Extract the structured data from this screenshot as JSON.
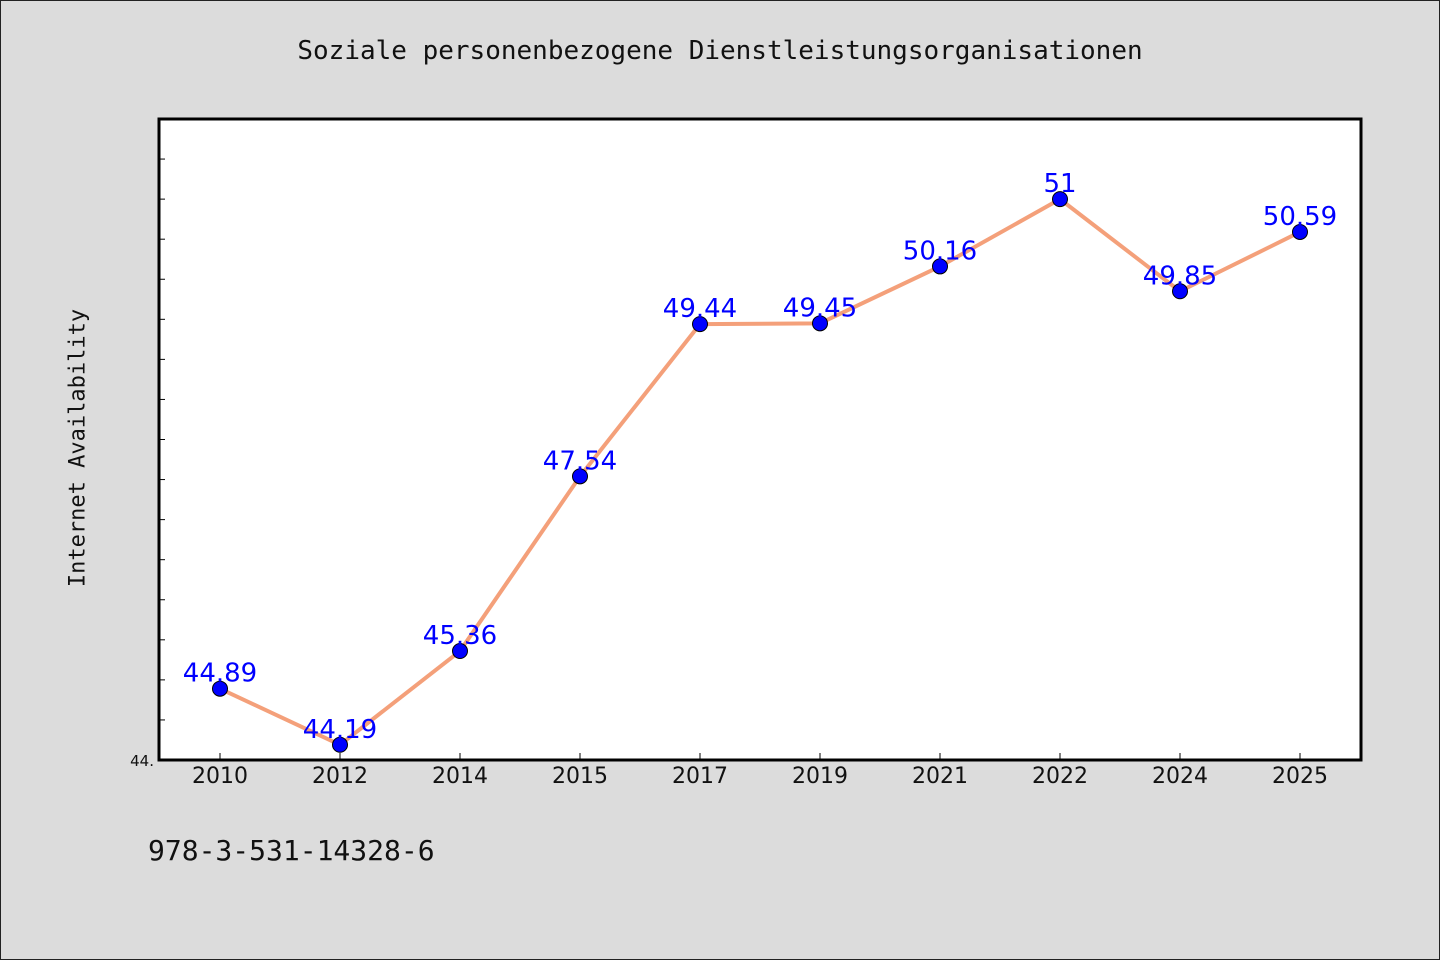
{
  "chart_data": {
    "type": "line",
    "title": "Soziale personenbezogene Dienstleistungsorganisationen",
    "xlabel": "",
    "ylabel": "Internet Availability",
    "categories": [
      "2010",
      "2012",
      "2014",
      "2015",
      "2017",
      "2019",
      "2021",
      "2022",
      "2024",
      "2025"
    ],
    "series": [
      {
        "values": [
          44.89,
          44.19,
          45.36,
          47.54,
          49.44,
          49.45,
          50.16,
          51,
          49.85,
          50.59
        ],
        "labels": [
          "44.89",
          "44.19",
          "45.36",
          "47.54",
          "49.44",
          "49.45",
          "50.16",
          "51",
          "49.85",
          "50.59"
        ]
      }
    ],
    "ylim": [
      44.0,
      52.0
    ],
    "y_tick_label": "44.",
    "grid": false,
    "line_color": "#f4a07a",
    "marker_color": "#0000ff",
    "label_color": "#0000ff"
  },
  "footer": {
    "isbn": "978-3-531-14328-6"
  }
}
